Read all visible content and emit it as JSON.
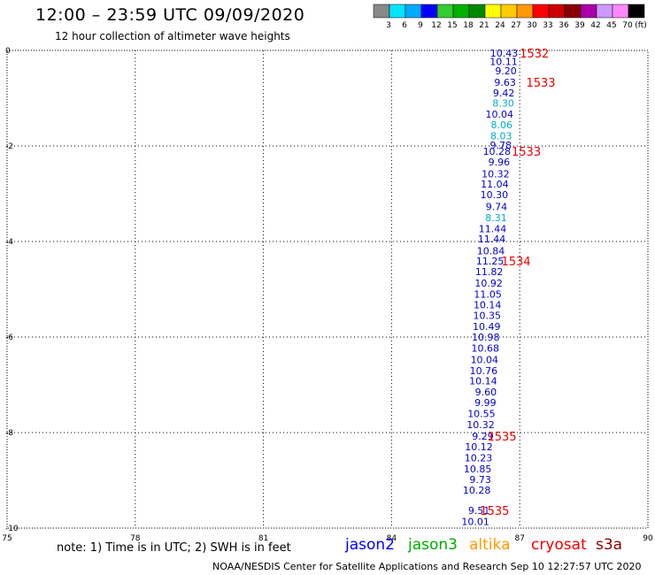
{
  "header": {
    "title": "12:00 – 23:59 UTC 09/09/2020",
    "subtitle": "12 hour collection of altimeter wave heights"
  },
  "colorbar": {
    "colors": [
      "#888888",
      "#00e5ff",
      "#00aaff",
      "#0000ff",
      "#33cc33",
      "#00b000",
      "#008800",
      "#ffff00",
      "#ffcc00",
      "#ff9900",
      "#ff0000",
      "#cc0000",
      "#880000",
      "#aa00aa",
      "#cc99ff",
      "#ff88ff",
      "#000000"
    ],
    "labels": [
      "3",
      "6",
      "9",
      "12",
      "15",
      "18",
      "21",
      "24",
      "27",
      "30",
      "33",
      "36",
      "39",
      "42",
      "45",
      "70"
    ],
    "unit": "(ft)"
  },
  "axes": {
    "x_ticks": [
      "75",
      "78",
      "81",
      "84",
      "87",
      "90"
    ],
    "y_ticks": [
      "0",
      "-2",
      "-4",
      "-6",
      "-8",
      "-10"
    ]
  },
  "chart_data": {
    "type": "scatter",
    "xlim": [
      75,
      90
    ],
    "ylim": [
      -10,
      0
    ],
    "grid": true,
    "points": [
      {
        "x": 86.96,
        "y": -0.06,
        "v": "10.43",
        "c": "#0000cc"
      },
      {
        "x": 86.95,
        "y": -0.23,
        "v": "10.11",
        "c": "#0000cc"
      },
      {
        "x": 86.93,
        "y": -0.43,
        "v": "9.20",
        "c": "#0000cc"
      },
      {
        "x": 86.91,
        "y": -0.67,
        "v": "9.63",
        "c": "#0000cc"
      },
      {
        "x": 86.88,
        "y": -0.89,
        "v": "9.42",
        "c": "#0000cc"
      },
      {
        "x": 86.87,
        "y": -1.1,
        "v": "8.30",
        "c": "#00aacc"
      },
      {
        "x": 86.85,
        "y": -1.33,
        "v": "10.04",
        "c": "#0000cc"
      },
      {
        "x": 86.83,
        "y": -1.56,
        "v": "8.06",
        "c": "#00aacc"
      },
      {
        "x": 86.82,
        "y": -1.79,
        "v": "8.03",
        "c": "#00aacc"
      },
      {
        "x": 86.81,
        "y": -1.98,
        "v": "9.78",
        "c": "#0000cc"
      },
      {
        "x": 86.79,
        "y": -2.11,
        "v": "10.28",
        "c": "#0000cc"
      },
      {
        "x": 86.77,
        "y": -2.33,
        "v": "9.96",
        "c": "#0000cc"
      },
      {
        "x": 86.76,
        "y": -2.58,
        "v": "10.32",
        "c": "#0000cc"
      },
      {
        "x": 86.74,
        "y": -2.8,
        "v": "11.04",
        "c": "#0000cc"
      },
      {
        "x": 86.73,
        "y": -3.02,
        "v": "10.30",
        "c": "#0000cc"
      },
      {
        "x": 86.71,
        "y": -3.27,
        "v": "9.74",
        "c": "#0000cc"
      },
      {
        "x": 86.7,
        "y": -3.5,
        "v": "8.31",
        "c": "#00aacc"
      },
      {
        "x": 86.69,
        "y": -3.73,
        "v": "11.44",
        "c": "#0000cc"
      },
      {
        "x": 86.67,
        "y": -3.94,
        "v": "11.44",
        "c": "#0000cc"
      },
      {
        "x": 86.65,
        "y": -4.19,
        "v": "10.84",
        "c": "#0000cc"
      },
      {
        "x": 86.63,
        "y": -4.41,
        "v": "11.25",
        "c": "#0000cc"
      },
      {
        "x": 86.61,
        "y": -4.63,
        "v": "11.82",
        "c": "#0000cc"
      },
      {
        "x": 86.6,
        "y": -4.87,
        "v": "10.92",
        "c": "#0000cc"
      },
      {
        "x": 86.58,
        "y": -5.1,
        "v": "11.05",
        "c": "#0000cc"
      },
      {
        "x": 86.57,
        "y": -5.32,
        "v": "10.14",
        "c": "#0000cc"
      },
      {
        "x": 86.56,
        "y": -5.55,
        "v": "10.35",
        "c": "#0000cc"
      },
      {
        "x": 86.55,
        "y": -5.78,
        "v": "10.49",
        "c": "#0000cc"
      },
      {
        "x": 86.53,
        "y": -6.0,
        "v": "10.98",
        "c": "#0000cc"
      },
      {
        "x": 86.52,
        "y": -6.23,
        "v": "10.68",
        "c": "#0000cc"
      },
      {
        "x": 86.5,
        "y": -6.47,
        "v": "10.04",
        "c": "#0000cc"
      },
      {
        "x": 86.48,
        "y": -6.7,
        "v": "10.76",
        "c": "#0000cc"
      },
      {
        "x": 86.47,
        "y": -6.92,
        "v": "10.14",
        "c": "#0000cc"
      },
      {
        "x": 86.46,
        "y": -7.15,
        "v": "9.60",
        "c": "#0000cc"
      },
      {
        "x": 86.45,
        "y": -7.37,
        "v": "9.99",
        "c": "#0000cc"
      },
      {
        "x": 86.43,
        "y": -7.6,
        "v": "10.55",
        "c": "#0000cc"
      },
      {
        "x": 86.41,
        "y": -7.83,
        "v": "10.32",
        "c": "#0000cc"
      },
      {
        "x": 86.39,
        "y": -8.07,
        "v": "9.29",
        "c": "#0000cc"
      },
      {
        "x": 86.37,
        "y": -8.3,
        "v": "10.12",
        "c": "#0000cc"
      },
      {
        "x": 86.36,
        "y": -8.53,
        "v": "10.23",
        "c": "#0000cc"
      },
      {
        "x": 86.34,
        "y": -8.76,
        "v": "10.85",
        "c": "#0000cc"
      },
      {
        "x": 86.33,
        "y": -8.98,
        "v": "9.73",
        "c": "#0000cc"
      },
      {
        "x": 86.32,
        "y": -9.2,
        "v": "10.28",
        "c": "#0000cc"
      },
      {
        "x": 86.3,
        "y": -9.63,
        "v": "9.51",
        "c": "#0000cc"
      },
      {
        "x": 86.29,
        "y": -9.86,
        "v": "10.01",
        "c": "#0000cc"
      }
    ],
    "time_labels": [
      {
        "x": 87.0,
        "y": -0.06,
        "t": "1532"
      },
      {
        "x": 87.15,
        "y": -0.67,
        "t": "1533"
      },
      {
        "x": 86.81,
        "y": -2.11,
        "t": "1533"
      },
      {
        "x": 86.57,
        "y": -4.41,
        "t": "1534"
      },
      {
        "x": 86.24,
        "y": -8.07,
        "t": "1535"
      },
      {
        "x": 86.07,
        "y": -9.63,
        "t": "1535"
      }
    ]
  },
  "note": "note: 1) Time is in UTC; 2) SWH is in feet",
  "satellites": [
    {
      "name": "jason2",
      "color": "#0000ff"
    },
    {
      "name": "jason3",
      "color": "#00aa00"
    },
    {
      "name": "altika",
      "color": "#ff9900"
    },
    {
      "name": "cryosat",
      "color": "#ee0000"
    },
    {
      "name": "s3a",
      "color": "#880000"
    }
  ],
  "footer": "NOAA/NESDIS Center for Satellite Applications and Research   Sep 10 12:27:57 UTC 2020"
}
